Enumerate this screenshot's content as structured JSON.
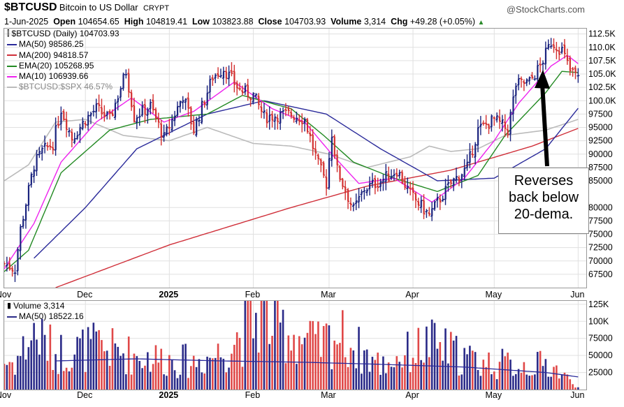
{
  "header": {
    "symbol": "$BTCUSD",
    "name": "Bitcoin to US Dollar",
    "exchange": "CRYPT",
    "brand": "@StockCharts.com",
    "date": "1-Jun-2025",
    "open_label": "Open",
    "open": "104654.65",
    "high_label": "High",
    "high": "104819.41",
    "low_label": "Low",
    "low": "103823.88",
    "close_label": "Close",
    "close": "104703.93",
    "volume_label": "Volume",
    "volume": "3,314",
    "chg_label": "Chg",
    "chg": "+49.28 (+0.05%)",
    "chg_arrow": "▲"
  },
  "legend": {
    "main": "$BTCUSD (Daily) 104703.93",
    "ma50": "MA(50) 98586.25",
    "ma200": "MA(200) 94818.57",
    "ema20": "EMA(20) 105268.95",
    "ma10": "MA(10) 106939.66",
    "ratio": "$BTCUSD:$SPX 46.57%"
  },
  "volume_legend": {
    "volume": "Volume 3,314",
    "ma50": "MA(50) 18522.16"
  },
  "annotation": {
    "line1": "Reverses",
    "line2": "back below",
    "line3": "20-dema."
  },
  "colors": {
    "up": "#1a237e",
    "down": "#d32f2f",
    "ma50": "#2a2a9a",
    "ma200": "#d0303a",
    "ema20": "#238a23",
    "ma10": "#ee22ee",
    "ratio": "#bbbbbb",
    "grid": "#e0e0e0",
    "vol_up": "#2a2a88",
    "vol_down": "#e04848"
  },
  "chart_data": [
    {
      "type": "candlestick",
      "title": "$BTCUSD (Daily)",
      "y_ticks": [
        "112.5K",
        "110.0K",
        "107.5K",
        "105.0K",
        "102.5K",
        "100.0K",
        "97500",
        "95000",
        "92500",
        "90000",
        "87500",
        "85000",
        "80000",
        "77500",
        "75000",
        "72500",
        "70000",
        "67500"
      ],
      "ylim": [
        65000,
        113500
      ],
      "x_ticks": [
        "Nov",
        "Dec",
        "2025",
        "Feb",
        "Mar",
        "Apr",
        "May",
        "Jun"
      ],
      "x_tick_dates": [
        "2024-11-01",
        "2024-12-01",
        "2025-01-01",
        "2025-02-01",
        "2025-03-01",
        "2025-04-01",
        "2025-05-01",
        "2025-06-01"
      ],
      "xlim": [
        "2024-11-01",
        "2025-06-04"
      ],
      "keypoints": [
        [
          "2024-11-01",
          69500
        ],
        [
          "2024-11-05",
          68500
        ],
        [
          "2024-11-07",
          76000
        ],
        [
          "2024-11-12",
          88000
        ],
        [
          "2024-11-15",
          90500
        ],
        [
          "2024-11-19",
          92000
        ],
        [
          "2024-11-22",
          98500
        ],
        [
          "2024-11-26",
          93000
        ],
        [
          "2024-12-01",
          96500
        ],
        [
          "2024-12-05",
          98500
        ],
        [
          "2024-12-10",
          96500
        ],
        [
          "2024-12-16",
          105500
        ],
        [
          "2024-12-19",
          97000
        ],
        [
          "2024-12-25",
          99000
        ],
        [
          "2024-12-30",
          93000
        ],
        [
          "2025-01-06",
          101000
        ],
        [
          "2025-01-10",
          94500
        ],
        [
          "2025-01-17",
          104500
        ],
        [
          "2025-01-21",
          106000
        ],
        [
          "2025-01-27",
          102000
        ],
        [
          "2025-02-01",
          101000
        ],
        [
          "2025-02-05",
          97000
        ],
        [
          "2025-02-15",
          97500
        ],
        [
          "2025-02-20",
          96500
        ],
        [
          "2025-02-25",
          88000
        ],
        [
          "2025-02-28",
          84500
        ],
        [
          "2025-03-02",
          94000
        ],
        [
          "2025-03-04",
          87000
        ],
        [
          "2025-03-10",
          79500
        ],
        [
          "2025-03-14",
          83500
        ],
        [
          "2025-03-20",
          85000
        ],
        [
          "2025-03-26",
          87000
        ],
        [
          "2025-03-31",
          82500
        ],
        [
          "2025-04-07",
          78500
        ],
        [
          "2025-04-10",
          81000
        ],
        [
          "2025-04-15",
          84500
        ],
        [
          "2025-04-21",
          87500
        ],
        [
          "2025-04-25",
          94500
        ],
        [
          "2025-05-01",
          96500
        ],
        [
          "2025-05-06",
          94500
        ],
        [
          "2025-05-09",
          103000
        ],
        [
          "2025-05-14",
          103500
        ],
        [
          "2025-05-18",
          106500
        ],
        [
          "2025-05-22",
          111000
        ],
        [
          "2025-05-26",
          109500
        ],
        [
          "2025-05-29",
          105500
        ],
        [
          "2025-06-01",
          104703.93
        ]
      ],
      "series": [
        {
          "name": "MA(50)",
          "values": [
            [
              "2024-11-12",
              70500
            ],
            [
              "2024-12-01",
              80000
            ],
            [
              "2024-12-20",
              91000
            ],
            [
              "2025-01-15",
              97500
            ],
            [
              "2025-02-05",
              100000
            ],
            [
              "2025-02-28",
              97500
            ],
            [
              "2025-03-20",
              91000
            ],
            [
              "2025-04-10",
              85000
            ],
            [
              "2025-05-01",
              85500
            ],
            [
              "2025-05-20",
              91000
            ],
            [
              "2025-06-01",
              98586.25
            ]
          ]
        },
        {
          "name": "MA(200)",
          "values": [
            [
              "2024-11-20",
              65000
            ],
            [
              "2025-01-01",
              73000
            ],
            [
              "2025-02-15",
              80000
            ],
            [
              "2025-03-15",
              84000
            ],
            [
              "2025-04-15",
              87000
            ],
            [
              "2025-05-15",
              91500
            ],
            [
              "2025-06-01",
              94818.57
            ]
          ]
        },
        {
          "name": "EMA(20)",
          "values": [
            [
              "2024-11-01",
              68000
            ],
            [
              "2024-11-10",
              72000
            ],
            [
              "2024-11-22",
              86500
            ],
            [
              "2024-12-10",
              94500
            ],
            [
              "2024-12-25",
              96500
            ],
            [
              "2025-01-15",
              97500
            ],
            [
              "2025-01-28",
              101000
            ],
            [
              "2025-02-15",
              98500
            ],
            [
              "2025-02-27",
              93500
            ],
            [
              "2025-03-10",
              88500
            ],
            [
              "2025-03-25",
              85500
            ],
            [
              "2025-04-10",
              83000
            ],
            [
              "2025-04-25",
              86000
            ],
            [
              "2025-05-05",
              93500
            ],
            [
              "2025-05-20",
              101500
            ],
            [
              "2025-05-26",
              105500
            ],
            [
              "2025-06-01",
              105268.95
            ]
          ]
        },
        {
          "name": "MA(10)",
          "values": [
            [
              "2024-11-01",
              68500
            ],
            [
              "2024-11-12",
              77000
            ],
            [
              "2024-11-22",
              88500
            ],
            [
              "2024-12-05",
              96000
            ],
            [
              "2024-12-18",
              100500
            ],
            [
              "2024-12-30",
              96000
            ],
            [
              "2025-01-10",
              98000
            ],
            [
              "2025-01-25",
              103500
            ],
            [
              "2025-02-08",
              98500
            ],
            [
              "2025-02-20",
              96000
            ],
            [
              "2025-03-02",
              90000
            ],
            [
              "2025-03-12",
              84500
            ],
            [
              "2025-03-25",
              85500
            ],
            [
              "2025-04-08",
              81000
            ],
            [
              "2025-04-20",
              85500
            ],
            [
              "2025-05-01",
              92500
            ],
            [
              "2025-05-10",
              99500
            ],
            [
              "2025-05-22",
              106500
            ],
            [
              "2025-05-28",
              108500
            ],
            [
              "2025-06-01",
              106939.66
            ]
          ]
        },
        {
          "name": "$BTCUSD:$SPX",
          "values": [
            [
              "2024-11-01",
              85000
            ],
            [
              "2024-11-10",
              88000
            ],
            [
              "2024-11-20",
              96000
            ],
            [
              "2024-12-01",
              96500
            ],
            [
              "2024-12-15",
              93500
            ],
            [
              "2025-01-01",
              92500
            ],
            [
              "2025-01-15",
              95000
            ],
            [
              "2025-02-01",
              92000
            ],
            [
              "2025-02-15",
              91500
            ],
            [
              "2025-03-01",
              90000
            ],
            [
              "2025-03-15",
              87500
            ],
            [
              "2025-03-31",
              89500
            ],
            [
              "2025-04-07",
              91500
            ],
            [
              "2025-04-15",
              90500
            ],
            [
              "2025-04-25",
              91000
            ],
            [
              "2025-05-05",
              93500
            ],
            [
              "2025-05-20",
              94500
            ],
            [
              "2025-06-01",
              96500
            ]
          ]
        }
      ]
    },
    {
      "type": "bar",
      "title": "Volume",
      "y_ticks": [
        "125K",
        "100K",
        "75000",
        "50000",
        "25000"
      ],
      "ylim": [
        0,
        130000
      ],
      "x_ticks": [
        "Nov",
        "Dec",
        "2025",
        "Feb",
        "Mar",
        "Apr",
        "May",
        "Jun"
      ],
      "values_sample": [
        [
          "2024-11-05",
          45000
        ],
        [
          "2024-11-12",
          92000
        ],
        [
          "2024-11-20",
          60000
        ],
        [
          "2024-12-05",
          70000
        ],
        [
          "2024-12-20",
          55000
        ],
        [
          "2025-01-10",
          45000
        ],
        [
          "2025-01-20",
          60000
        ],
        [
          "2025-02-03",
          120000
        ],
        [
          "2025-02-25",
          70000
        ],
        [
          "2025-03-04",
          90000
        ],
        [
          "2025-03-20",
          40000
        ],
        [
          "2025-04-07",
          75000
        ],
        [
          "2025-04-25",
          45000
        ],
        [
          "2025-05-09",
          40000
        ],
        [
          "2025-05-22",
          40000
        ],
        [
          "2025-06-01",
          3314
        ]
      ],
      "series": [
        {
          "name": "MA(50)",
          "values": [
            [
              "2024-11-20",
              42000
            ],
            [
              "2024-12-20",
              45000
            ],
            [
              "2025-01-20",
              42000
            ],
            [
              "2025-02-20",
              40000
            ],
            [
              "2025-03-20",
              37000
            ],
            [
              "2025-04-20",
              33000
            ],
            [
              "2025-05-20",
              25000
            ],
            [
              "2025-06-01",
              18522.16
            ]
          ]
        }
      ]
    }
  ]
}
